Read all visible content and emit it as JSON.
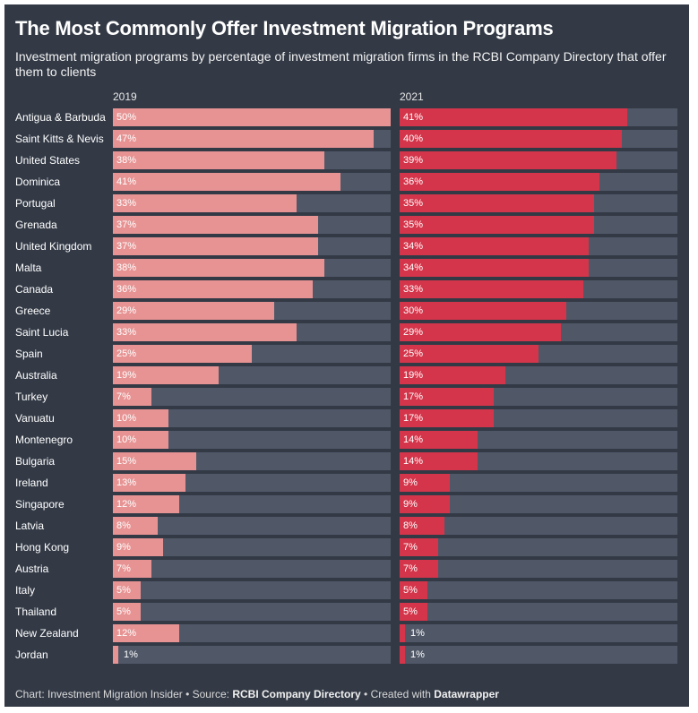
{
  "title": "The Most Commonly Offer Investment Migration Programs",
  "subtitle": "Investment migration programs by percentage of investment migration firms in the RCBI Company Directory that offer them to clients",
  "footer": {
    "chart_credit": "Chart: Investment Migration Insider",
    "separator": " • ",
    "source_prefix": "Source: ",
    "source": "RCBI Company Directory",
    "created_prefix": "Created with ",
    "created_with": "Datawrapper"
  },
  "colors": {
    "bg": "#333a46",
    "track": "#505868",
    "series_2019": "#e79393",
    "series_2021": "#d4354a"
  },
  "chart_data": {
    "type": "bar",
    "orientation": "horizontal",
    "title": "The Most Commonly Offer Investment Migration Programs",
    "unit": "%",
    "xlim": [
      0,
      50
    ],
    "categories": [
      "Antigua & Barbuda",
      "Saint Kitts & Nevis",
      "United States",
      "Dominica",
      "Portugal",
      "Grenada",
      "United Kingdom",
      "Malta",
      "Canada",
      "Greece",
      "Saint Lucia",
      "Spain",
      "Australia",
      "Turkey",
      "Vanuatu",
      "Montenegro",
      "Bulgaria",
      "Ireland",
      "Singapore",
      "Latvia",
      "Hong Kong",
      "Austria",
      "Italy",
      "Thailand",
      "New Zealand",
      "Jordan"
    ],
    "series": [
      {
        "name": "2019",
        "values": [
          50,
          47,
          38,
          41,
          33,
          37,
          37,
          38,
          36,
          29,
          33,
          25,
          19,
          7,
          10,
          10,
          15,
          13,
          12,
          8,
          9,
          7,
          5,
          5,
          12,
          1
        ]
      },
      {
        "name": "2021",
        "values": [
          41,
          40,
          39,
          36,
          35,
          35,
          34,
          34,
          33,
          30,
          29,
          25,
          19,
          17,
          17,
          14,
          14,
          9,
          9,
          8,
          7,
          7,
          5,
          5,
          1,
          1
        ]
      }
    ]
  }
}
